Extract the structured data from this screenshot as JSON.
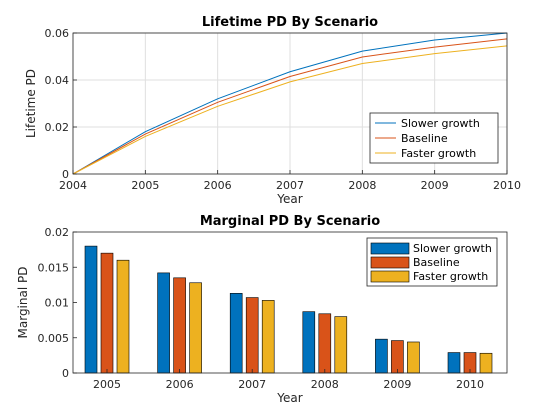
{
  "chart_data": [
    {
      "type": "line",
      "title": "Lifetime PD By Scenario",
      "xlabel": "Year",
      "ylabel": "Lifetime PD",
      "xlim": [
        2004,
        2010
      ],
      "ylim": [
        0,
        0.06
      ],
      "xticks": [
        "2004",
        "2005",
        "2006",
        "2007",
        "2008",
        "2009",
        "2010"
      ],
      "yticks": [
        "0",
        "0.02",
        "0.04",
        "0.06"
      ],
      "grid": true,
      "legend_position": "bottom-right",
      "x": [
        2004,
        2005,
        2006,
        2007,
        2008,
        2009,
        2010
      ],
      "series": [
        {
          "name": "Slower growth",
          "color": "#0072BD",
          "values": [
            0,
            0.018,
            0.032,
            0.0435,
            0.0523,
            0.057,
            0.06
          ]
        },
        {
          "name": "Baseline",
          "color": "#D95319",
          "values": [
            0,
            0.017,
            0.0305,
            0.0415,
            0.0498,
            0.054,
            0.0575
          ]
        },
        {
          "name": "Faster growth",
          "color": "#EDB120",
          "values": [
            0,
            0.016,
            0.0288,
            0.0392,
            0.047,
            0.0512,
            0.0545
          ]
        }
      ]
    },
    {
      "type": "bar",
      "title": "Marginal PD By Scenario",
      "xlabel": "Year",
      "ylabel": "Marginal PD",
      "ylim": [
        0,
        0.02
      ],
      "yticks": [
        "0",
        "0.005",
        "0.01",
        "0.015",
        "0.02"
      ],
      "grid": false,
      "legend_position": "top-right",
      "categories": [
        "2005",
        "2006",
        "2007",
        "2008",
        "2009",
        "2010"
      ],
      "series": [
        {
          "name": "Slower growth",
          "color": "#0072BD",
          "values": [
            0.018,
            0.0142,
            0.0113,
            0.0087,
            0.0048,
            0.0029
          ]
        },
        {
          "name": "Baseline",
          "color": "#D95319",
          "values": [
            0.017,
            0.0135,
            0.0107,
            0.0084,
            0.0046,
            0.0029
          ]
        },
        {
          "name": "Faster growth",
          "color": "#EDB120",
          "values": [
            0.016,
            0.0128,
            0.0103,
            0.008,
            0.0044,
            0.0028
          ]
        }
      ]
    }
  ]
}
